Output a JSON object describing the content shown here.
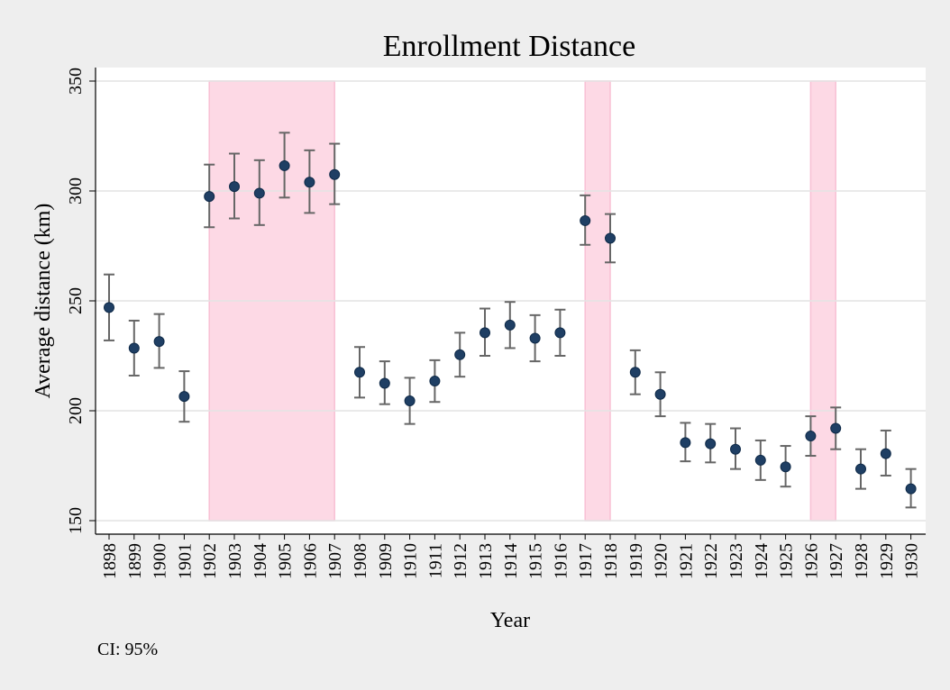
{
  "chart_data": {
    "type": "scatter",
    "title": "Enrollment Distance",
    "xlabel": "Year",
    "ylabel": "Average distance (km)",
    "ylim": [
      150,
      350
    ],
    "yticks": [
      150,
      200,
      250,
      300,
      350
    ],
    "grid": true,
    "note": "CI: 95%",
    "colors": {
      "point": "#1f3f64",
      "errorbar": "#666666",
      "shade": "#fdd9e5",
      "shade_edge": "#f8c0d4",
      "grid": "#e4e4e4",
      "plot_bg": "#ffffff"
    },
    "x": [
      "1898",
      "1899",
      "1900",
      "1901",
      "1902",
      "1903",
      "1904",
      "1905",
      "1906",
      "1907",
      "1908",
      "1909",
      "1910",
      "1911",
      "1912",
      "1913",
      "1914",
      "1915",
      "1916",
      "1917",
      "1918",
      "1919",
      "1920",
      "1921",
      "1922",
      "1923",
      "1924",
      "1925",
      "1926",
      "1927",
      "1928",
      "1929",
      "1930"
    ],
    "series": [
      {
        "values": [
          247,
          228.5,
          231.5,
          206.5,
          297.5,
          302,
          299,
          311.5,
          304,
          307.5,
          217.5,
          212.5,
          204.5,
          213.5,
          225.5,
          235.5,
          239,
          233,
          235.5,
          286.5,
          278.5,
          217.5,
          207.5,
          185.5,
          185,
          182.5,
          177.5,
          174.5,
          188.5,
          192,
          173.5,
          180.5,
          164.5
        ],
        "ci_lower": [
          232,
          216,
          219.5,
          195,
          283.5,
          287.5,
          284.5,
          297,
          290,
          294,
          206,
          203,
          194,
          204,
          215.5,
          225,
          228.5,
          222.5,
          225,
          275.5,
          267.5,
          207.5,
          197.5,
          177,
          176.5,
          173.5,
          168.5,
          165.5,
          179.5,
          182.5,
          164.5,
          170.5,
          156
        ],
        "ci_upper": [
          262,
          241,
          244,
          218,
          312,
          317,
          314,
          326.5,
          318.5,
          321.5,
          229,
          222.5,
          215,
          223,
          235.5,
          246.5,
          249.5,
          243.5,
          246,
          298,
          289.5,
          227.5,
          217.5,
          194.5,
          194,
          192,
          186.5,
          184,
          197.5,
          201.5,
          182.5,
          191,
          173.5
        ]
      }
    ],
    "shaded_ranges": [
      [
        "1902",
        "1907"
      ],
      [
        "1917",
        "1918"
      ],
      [
        "1926",
        "1927"
      ]
    ]
  }
}
